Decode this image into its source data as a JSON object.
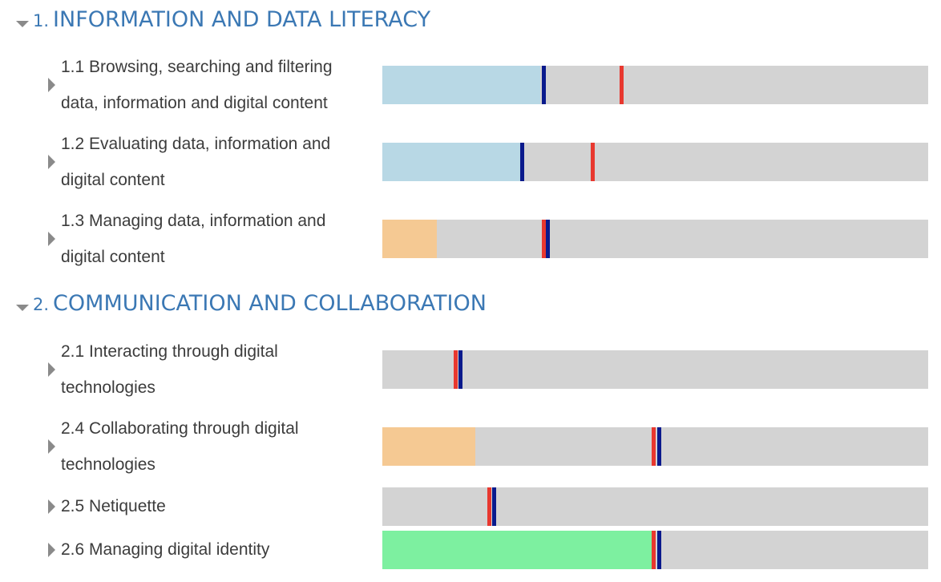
{
  "sections": [
    {
      "number": "1.",
      "title": "INFORMATION AND DATA LITERACY",
      "items": [
        {
          "label": "1.1 Browsing, searching and filtering data, information and digital content",
          "fill_pct": 29.0,
          "fill_color": "#b8d8e5",
          "blue_marker_pct": 29.2,
          "red_marker_pct": 43.4
        },
        {
          "label": "1.2 Evaluating data, information and digital content",
          "fill_pct": 25.3,
          "fill_color": "#b8d8e5",
          "blue_marker_pct": 25.3,
          "red_marker_pct": 38.2
        },
        {
          "label": "1.3 Managing data, information and digital content",
          "fill_pct": 10.0,
          "fill_color": "#f5c993",
          "blue_marker_pct": 30.0,
          "red_marker_pct": 29.2
        }
      ]
    },
    {
      "number": "2.",
      "title": "COMMUNICATION AND COLLABORATION",
      "items": [
        {
          "label": "2.1 Interacting through digital technologies",
          "fill_pct": 0,
          "fill_color": "#d3d3d3",
          "blue_marker_pct": 14.0,
          "red_marker_pct": 13.1
        },
        {
          "label": "2.4 Collaborating through digital technologies",
          "fill_pct": 17.0,
          "fill_color": "#f5c993",
          "blue_marker_pct": 50.3,
          "red_marker_pct": 49.4
        },
        {
          "label": "2.5 Netiquette",
          "fill_pct": 0,
          "fill_color": "#d3d3d3",
          "blue_marker_pct": 20.1,
          "red_marker_pct": 19.2
        },
        {
          "label": "2.6 Managing digital identity",
          "fill_pct": 49.4,
          "fill_color": "#7df0a0",
          "blue_marker_pct": 50.3,
          "red_marker_pct": 49.4
        }
      ]
    }
  ],
  "colors": {
    "heading": "#3b78b4",
    "bar_background": "#d3d3d3",
    "blue_marker": "#0a1a8c",
    "red_marker": "#e8382f"
  },
  "icons": {
    "section_toggle": "caret-down-icon",
    "row_toggle": "caret-right-icon"
  }
}
